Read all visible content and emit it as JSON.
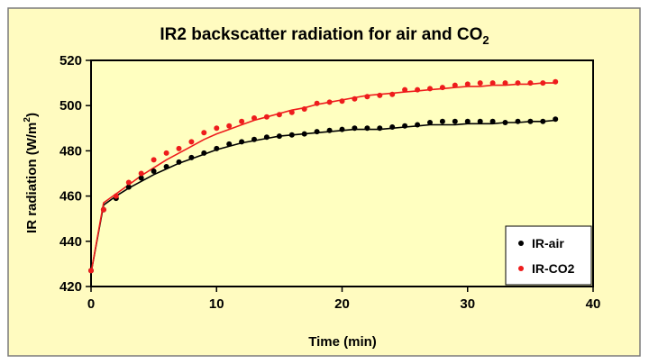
{
  "chart_data": {
    "type": "scatter",
    "title": "IR2 backscatter radiation for air and CO",
    "title_subscript": "2",
    "xlabel": "Time (min)",
    "ylabel": "IR radiation (W/m",
    "ylabel_superscript": "2",
    "ylabel_suffix": ")",
    "xlim": [
      0,
      40
    ],
    "ylim": [
      420,
      520
    ],
    "xticks": [
      0,
      10,
      20,
      30,
      40
    ],
    "yticks": [
      420,
      440,
      460,
      480,
      500,
      520
    ],
    "grid": false,
    "legend_position": "bottom-right",
    "background_color": "#fffbc0",
    "plot_background_color": "#ffffc0",
    "series": [
      {
        "name": "IR-air",
        "color": "#000000",
        "x": [
          0,
          1,
          2,
          3,
          4,
          5,
          6,
          7,
          8,
          9,
          10,
          11,
          12,
          13,
          14,
          15,
          16,
          17,
          18,
          19,
          20,
          21,
          22,
          23,
          24,
          25,
          26,
          27,
          28,
          29,
          30,
          31,
          32,
          33,
          34,
          35,
          36,
          37
        ],
        "y": [
          427,
          454,
          459,
          464,
          468,
          471,
          473,
          475,
          477,
          479,
          481,
          483,
          484,
          485,
          486,
          486.5,
          487,
          487.5,
          488.5,
          489,
          489.5,
          490,
          490,
          490,
          490.5,
          491,
          491.5,
          492.5,
          493,
          493,
          493,
          493,
          493,
          492.5,
          493,
          493,
          493,
          494
        ],
        "trend_x": [
          0,
          1,
          2,
          3,
          4,
          5,
          6,
          7,
          8,
          9,
          10,
          11,
          12,
          13,
          14,
          15,
          16,
          17,
          18,
          19,
          20,
          21,
          22,
          23,
          24,
          25,
          26,
          27,
          28,
          29,
          30,
          31,
          32,
          33,
          34,
          35,
          36,
          37
        ],
        "trend_y": [
          426,
          456,
          460,
          463.5,
          466.5,
          469.5,
          472,
          474.5,
          476.5,
          478.5,
          480.5,
          482,
          483.5,
          484.5,
          485.5,
          486.5,
          487,
          487.5,
          488,
          488.5,
          489,
          489.5,
          489.5,
          489.5,
          490,
          490.5,
          491,
          491.5,
          491.5,
          491.5,
          492,
          492,
          492,
          492.5,
          492.5,
          493,
          493,
          493.5
        ]
      },
      {
        "name": "IR-CO2",
        "color": "#ee1c1c",
        "x": [
          0,
          1,
          2,
          3,
          4,
          5,
          6,
          7,
          8,
          9,
          10,
          11,
          12,
          13,
          14,
          15,
          16,
          17,
          18,
          19,
          20,
          21,
          22,
          23,
          24,
          25,
          26,
          27,
          28,
          29,
          30,
          31,
          32,
          33,
          34,
          35,
          36,
          37
        ],
        "y": [
          427,
          454,
          460,
          466,
          470,
          476,
          479,
          481,
          484,
          488,
          490,
          491,
          493,
          494.5,
          495,
          496,
          497,
          498.5,
          501,
          501.5,
          502,
          503,
          504,
          504.5,
          505,
          507,
          507,
          507.5,
          508,
          509,
          509.5,
          510,
          510,
          510,
          510,
          510,
          510,
          510.5
        ],
        "trend_x": [
          0,
          1,
          2,
          3,
          4,
          5,
          6,
          7,
          8,
          9,
          10,
          11,
          12,
          13,
          14,
          15,
          16,
          17,
          18,
          19,
          20,
          21,
          22,
          23,
          24,
          25,
          26,
          27,
          28,
          29,
          30,
          31,
          32,
          33,
          34,
          35,
          36,
          37
        ],
        "trend_y": [
          426,
          457,
          461,
          465,
          469,
          472.5,
          476,
          479,
          482,
          485,
          487.5,
          489.5,
          491.5,
          493.5,
          495,
          496.5,
          498,
          499,
          500.5,
          501.5,
          502.5,
          503.5,
          504.5,
          505,
          505.5,
          506,
          506.5,
          507,
          507.5,
          508,
          508.5,
          508.5,
          509,
          509,
          509.5,
          509.5,
          510,
          510
        ]
      }
    ]
  }
}
